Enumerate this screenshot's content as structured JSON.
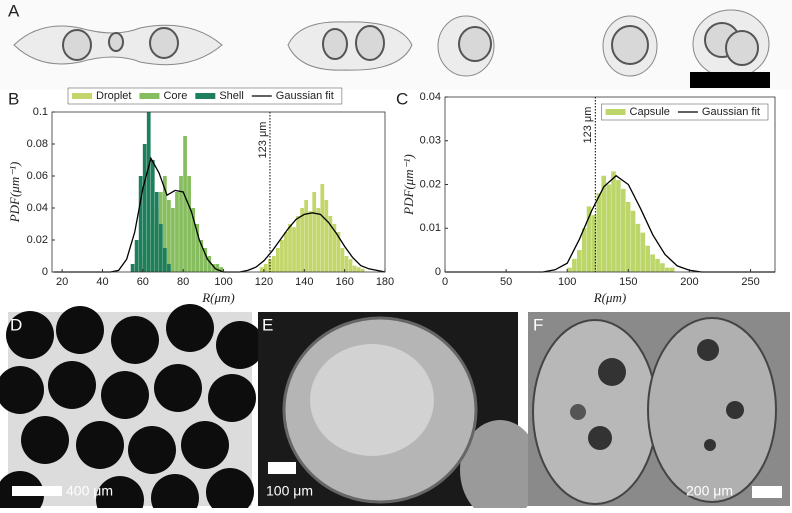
{
  "images": [
    {
      "label": "A"
    },
    {
      "label": "D",
      "scale_bar": "400 μm"
    },
    {
      "label": "E",
      "scale_bar": "100 μm"
    },
    {
      "label": "F",
      "scale_bar": "200 μm"
    }
  ],
  "chart_data": [
    {
      "type": "histogram",
      "label": "B",
      "xlabel": "R(μm)",
      "ylabel": "PDF(μm⁻¹)",
      "xlim": [
        15,
        180
      ],
      "xticks": [
        20,
        40,
        60,
        80,
        100,
        120,
        140,
        160,
        180
      ],
      "ylim": [
        0,
        0.1
      ],
      "yticks": [
        0,
        0.02,
        0.04,
        0.06,
        0.08,
        0.1
      ],
      "legend": "top",
      "series": [
        {
          "name": "Droplet",
          "color": "#c2d66a",
          "bins": [
            118,
            120,
            122,
            124,
            126,
            128,
            130,
            132,
            134,
            136,
            138,
            140,
            142,
            144,
            146,
            148,
            150,
            152,
            154,
            156,
            158,
            160,
            162,
            164,
            166,
            168,
            170
          ],
          "values": [
            0.003,
            0.005,
            0.008,
            0.01,
            0.015,
            0.02,
            0.025,
            0.03,
            0.028,
            0.035,
            0.04,
            0.045,
            0.038,
            0.05,
            0.04,
            0.055,
            0.045,
            0.035,
            0.03,
            0.025,
            0.015,
            0.01,
            0.008,
            0.004,
            0.003,
            0.002
          ]
        },
        {
          "name": "Core",
          "color": "#86bd5e",
          "bins": [
            60,
            62,
            64,
            66,
            68,
            70,
            72,
            74,
            76,
            78,
            80,
            82,
            84,
            86,
            88,
            90,
            92,
            94,
            96,
            98,
            100
          ],
          "values": [
            0.01,
            0.02,
            0.03,
            0.04,
            0.05,
            0.06,
            0.045,
            0.04,
            0.05,
            0.06,
            0.085,
            0.06,
            0.04,
            0.03,
            0.02,
            0.015,
            0.01,
            0.005,
            0.005,
            0.003
          ]
        },
        {
          "name": "Shell",
          "color": "#1f7f5c",
          "bins": [
            54,
            56,
            58,
            60,
            62,
            64,
            66,
            68,
            70,
            72,
            74
          ],
          "values": [
            0.005,
            0.02,
            0.06,
            0.08,
            0.1,
            0.07,
            0.05,
            0.03,
            0.015,
            0.005
          ]
        }
      ],
      "fit": {
        "name": "Gaussian fit",
        "color": "#000000",
        "x": [
          16,
          20,
          24,
          28,
          32,
          36,
          40,
          44,
          48,
          52,
          56,
          60,
          64,
          68,
          72,
          76,
          80,
          84,
          88,
          92,
          96,
          100,
          104,
          108,
          112,
          116,
          120,
          124,
          128,
          132,
          136,
          140,
          144,
          148,
          152,
          156,
          160,
          164,
          168,
          172,
          176,
          180
        ],
        "values": [
          0,
          0,
          0,
          0,
          0,
          0,
          0,
          0,
          0.001,
          0.008,
          0.025,
          0.052,
          0.071,
          0.062,
          0.048,
          0.051,
          0.05,
          0.038,
          0.02,
          0.008,
          0.002,
          0,
          0,
          0,
          0.001,
          0.003,
          0.007,
          0.013,
          0.02,
          0.027,
          0.033,
          0.036,
          0.037,
          0.036,
          0.031,
          0.024,
          0.016,
          0.009,
          0.004,
          0.002,
          0.001,
          0
        ]
      },
      "annotation": {
        "text": "123 μm",
        "x": 123
      }
    },
    {
      "type": "histogram",
      "label": "C",
      "xlabel": "R(μm)",
      "ylabel": "PDF(μm⁻¹)",
      "xlim": [
        0,
        270
      ],
      "xticks": [
        0,
        50,
        100,
        150,
        200,
        250
      ],
      "ylim": [
        0,
        0.04
      ],
      "yticks": [
        0,
        0.01,
        0.02,
        0.03,
        0.04
      ],
      "legend": "upper right",
      "series": [
        {
          "name": "Capsule",
          "color": "#bcd66a",
          "bins": [
            100,
            104,
            108,
            112,
            116,
            120,
            124,
            128,
            132,
            136,
            140,
            144,
            148,
            152,
            156,
            160,
            164,
            168,
            172,
            176,
            180,
            184,
            188
          ],
          "values": [
            0.001,
            0.003,
            0.005,
            0.01,
            0.015,
            0.013,
            0.018,
            0.022,
            0.02,
            0.023,
            0.021,
            0.019,
            0.016,
            0.014,
            0.011,
            0.009,
            0.006,
            0.004,
            0.003,
            0.002,
            0.001,
            0.001
          ]
        }
      ],
      "fit": {
        "name": "Gaussian fit",
        "color": "#000000",
        "x": [
          0,
          10,
          20,
          30,
          40,
          50,
          60,
          70,
          80,
          90,
          100,
          110,
          120,
          130,
          140,
          150,
          160,
          170,
          180,
          190,
          200,
          210,
          220,
          230,
          240,
          250,
          260,
          270
        ],
        "values": [
          0,
          0,
          0,
          0,
          0,
          0,
          0,
          0,
          0,
          0.0005,
          0.002,
          0.0075,
          0.014,
          0.0195,
          0.022,
          0.02,
          0.0145,
          0.0085,
          0.004,
          0.0014,
          0.0004,
          0,
          0,
          0,
          0,
          0,
          0,
          0
        ]
      },
      "annotation": {
        "text": "123 μm",
        "x": 123
      }
    }
  ]
}
